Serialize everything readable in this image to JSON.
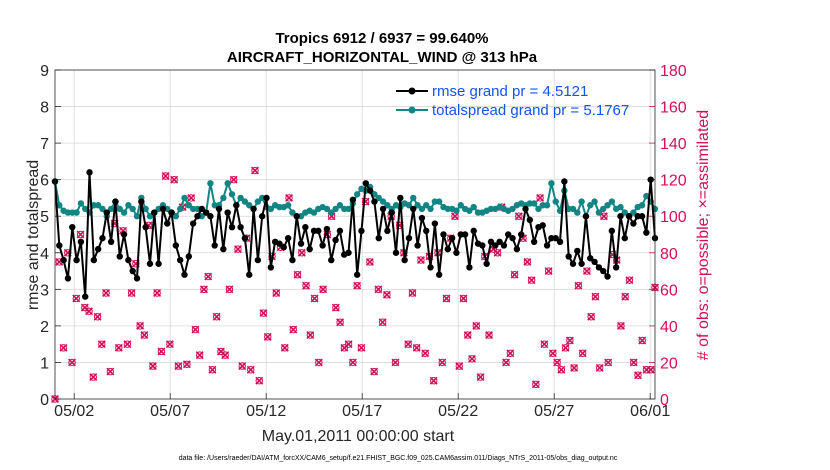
{
  "chart_data": {
    "type": "line",
    "title": "Tropics 6912 / 6937 = 99.640%",
    "subtitle": "AIRCRAFT_HORIZONTAL_WIND @ 313 hPa",
    "xlabel": "May.01,2011 00:00:00 start",
    "ylabel": "rmse and totalspread",
    "y2label": "# of obs: o=possible; ×=assimilated",
    "footer": "data file: /Users/raeder/DAI/ATM_forcXX/CAM6_setup/f.e21.FHIST_BGC.f09_025.CAM6assim.011/Diags_NTrS_2011-05/obs_diag_output.nc",
    "xticks": [
      "05/02",
      "05/07",
      "05/12",
      "05/17",
      "05/22",
      "05/27",
      "06/01"
    ],
    "xtick_days": [
      1.0,
      6.0,
      11.0,
      16.0,
      21.0,
      26.0,
      31.0
    ],
    "ylim": [
      0,
      9
    ],
    "yticks": [
      "0",
      "1",
      "2",
      "3",
      "4",
      "5",
      "6",
      "7",
      "8",
      "9"
    ],
    "y2lim": [
      0,
      180
    ],
    "y2ticks": [
      "0",
      "20",
      "40",
      "60",
      "80",
      "100",
      "120",
      "140",
      "160",
      "180"
    ],
    "xlim_days": [
      0.0,
      31.25
    ],
    "x_unit": "days since May 01 2011 00:00",
    "legend": [
      "rmse grand pr = 4.5121",
      "totalspread grand pr = 5.1767"
    ],
    "colors": {
      "rmse": "#000000",
      "spread": "#128585",
      "obs": "#d1105a",
      "grid": "#d8d8d8"
    },
    "series": [
      {
        "name": "rmse",
        "axis": "left",
        "values": [
          5.95,
          4.2,
          3.8,
          3.3,
          4.7,
          3.8,
          4.3,
          2.8,
          6.2,
          3.8,
          4.1,
          4.4,
          5.1,
          4.3,
          5.4,
          3.9,
          4.5,
          3.8,
          3.5,
          3.3,
          5.4,
          4.7,
          3.7,
          5.1,
          3.7,
          5.2,
          4.8,
          5.1,
          4.2,
          3.8,
          3.4,
          3.9,
          4.8,
          5.0,
          5.2,
          5.1,
          5.0,
          4.2,
          5.2,
          4.1,
          5.1,
          4.7,
          5.3,
          4.7,
          4.4,
          3.4,
          5.2,
          3.8,
          5.0,
          5.5,
          3.6,
          4.3,
          4.25,
          4.15,
          4.4,
          3.8,
          5.0,
          4.25,
          4.7,
          4.1,
          4.6,
          4.6,
          4.2,
          4.65,
          3.8,
          4.35,
          4.6,
          3.95,
          4.0,
          5.45,
          3.4,
          4.6,
          5.9,
          5.7,
          5.4,
          4.4,
          5.2,
          4.6,
          5.1,
          4.0,
          5.5,
          3.8,
          4.4,
          5.2,
          4.2,
          4.95,
          4.6,
          3.6,
          4.8,
          3.4,
          4.5,
          4.1,
          4.4,
          4.0,
          4.5,
          4.5,
          3.6,
          4.6,
          4.25,
          4.2,
          3.7,
          4.3,
          4.2,
          4.3,
          4.2,
          4.5,
          4.4,
          4.1,
          4.5,
          5.2,
          4.9,
          4.3,
          4.7,
          4.75,
          4.2,
          4.4,
          4.4,
          4.3,
          5.95,
          3.9,
          3.7,
          4.05,
          3.7,
          5.0,
          3.85,
          3.75,
          3.6,
          3.5,
          3.35,
          4.6,
          3.6,
          5.0,
          4.4,
          5.0,
          4.8,
          5.0,
          5.0,
          4.55,
          6.0,
          4.4
        ]
      },
      {
        "name": "totalspread",
        "axis": "left",
        "values": [
          5.95,
          5.3,
          5.15,
          5.1,
          5.1,
          5.1,
          5.35,
          5.2,
          5.1,
          5.3,
          5.3,
          5.2,
          5.0,
          5.2,
          5.4,
          5.2,
          5.1,
          5.3,
          5.2,
          5.0,
          5.5,
          5.2,
          5.0,
          5.1,
          5.2,
          5.3,
          5.2,
          5.1,
          5.0,
          5.2,
          5.5,
          5.3,
          5.2,
          5.2,
          5.0,
          5.1,
          5.9,
          5.3,
          5.3,
          5.5,
          5.9,
          5.6,
          5.3,
          5.5,
          5.4,
          5.3,
          5.2,
          5.4,
          5.5,
          5.25,
          5.2,
          5.3,
          5.25,
          5.25,
          5.3,
          5.1,
          5.0,
          5.0,
          5.1,
          5.15,
          5.1,
          5.2,
          5.25,
          5.2,
          5.1,
          5.2,
          5.3,
          5.2,
          5.2,
          5.35,
          5.6,
          5.75,
          5.7,
          5.8,
          5.6,
          5.5,
          5.4,
          5.3,
          5.2,
          5.3,
          5.25,
          5.35,
          5.3,
          5.5,
          5.3,
          5.2,
          5.3,
          5.2,
          5.4,
          5.4,
          5.25,
          5.2,
          5.2,
          5.15,
          5.3,
          5.2,
          5.15,
          5.25,
          5.1,
          5.1,
          5.15,
          5.2,
          5.2,
          5.25,
          5.2,
          5.15,
          5.2,
          5.3,
          5.35,
          5.3,
          5.35,
          5.35,
          5.2,
          5.3,
          5.3,
          5.9,
          5.4,
          5.15,
          5.7,
          5.2,
          5.2,
          5.1,
          5.4,
          5.0,
          5.3,
          5.4,
          5.1,
          5.2,
          5.3,
          5.4,
          5.2,
          5.25,
          5.1,
          5.0,
          5.1,
          5.25,
          5.3,
          5.55,
          5.4,
          5.2
        ]
      },
      {
        "name": "obs_possible",
        "axis": "right",
        "marker": "o",
        "values": [
          0,
          75,
          28,
          80,
          20,
          55,
          90,
          50,
          48,
          12,
          45,
          30,
          58,
          15,
          96,
          28,
          92,
          30,
          58,
          74,
          40,
          35,
          95,
          18,
          58,
          26,
          122,
          30,
          120,
          18,
          105,
          19,
          110,
          38,
          24,
          60,
          67,
          16,
          45,
          26,
          24,
          60,
          120,
          82,
          18,
          88,
          16,
          125,
          10,
          47,
          34,
          78,
          58,
          83,
          28,
          110,
          38,
          68,
          80,
          62,
          35,
          55,
          20,
          60,
          90,
          100,
          50,
          42,
          28,
          30,
          20,
          62,
          28,
          108,
          75,
          15,
          60,
          42,
          57,
          100,
          20,
          95,
          80,
          30,
          58,
          28,
          76,
          25,
          78,
          10,
          80,
          20,
          55,
          88,
          100,
          18,
          55,
          35,
          22,
          40,
          12,
          78,
          35,
          82,
          80,
          105,
          20,
          25,
          68,
          100,
          88,
          75,
          65,
          8,
          110,
          30,
          70,
          25,
          20,
          16,
          28,
          32,
          17,
          62,
          25,
          70,
          45,
          56,
          17,
          100,
          20,
          79,
          76,
          40,
          56,
          65,
          20,
          13,
          32,
          16,
          16,
          61
        ]
      },
      {
        "name": "obs_assimilated",
        "axis": "right",
        "marker": "x",
        "values": [
          0,
          75,
          28,
          80,
          20,
          55,
          90,
          50,
          48,
          12,
          45,
          30,
          58,
          15,
          96,
          28,
          92,
          30,
          58,
          74,
          40,
          35,
          95,
          18,
          58,
          26,
          122,
          30,
          120,
          18,
          105,
          19,
          110,
          38,
          24,
          60,
          67,
          16,
          45,
          26,
          24,
          60,
          120,
          82,
          18,
          88,
          16,
          125,
          10,
          47,
          34,
          78,
          58,
          83,
          28,
          110,
          38,
          68,
          80,
          62,
          35,
          55,
          20,
          60,
          90,
          100,
          50,
          42,
          28,
          30,
          20,
          62,
          28,
          108,
          75,
          15,
          60,
          42,
          57,
          100,
          20,
          95,
          80,
          30,
          58,
          28,
          76,
          25,
          78,
          10,
          80,
          20,
          55,
          88,
          100,
          18,
          55,
          35,
          22,
          40,
          12,
          78,
          35,
          82,
          80,
          105,
          20,
          25,
          68,
          100,
          88,
          75,
          65,
          8,
          110,
          30,
          70,
          25,
          20,
          16,
          28,
          32,
          17,
          62,
          25,
          70,
          45,
          56,
          17,
          100,
          20,
          79,
          76,
          40,
          56,
          65,
          20,
          13,
          32,
          16,
          16,
          61
        ]
      }
    ]
  }
}
